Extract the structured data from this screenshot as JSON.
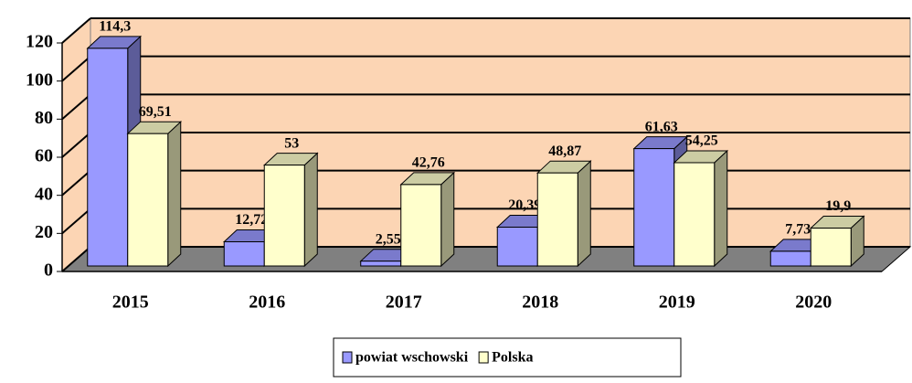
{
  "chart_data": {
    "type": "bar3d",
    "categories": [
      "2015",
      "2016",
      "2017",
      "2018",
      "2019",
      "2020"
    ],
    "series": [
      {
        "name": "powiat wschowski",
        "color": "#9999ff",
        "values": [
          114.3,
          12.72,
          2.55,
          20.39,
          61.63,
          7.73
        ],
        "value_labels": [
          "114,3",
          "12,72",
          "2,55",
          "20,39",
          "61,63",
          "7,73"
        ]
      },
      {
        "name": "Polska",
        "color": "#ffffcc",
        "values": [
          69.51,
          53,
          42.76,
          48.87,
          54.25,
          19.9
        ],
        "value_labels": [
          "69,51",
          "53",
          "42,76",
          "48,87",
          "54,25",
          "19,9"
        ]
      }
    ],
    "ylim": [
      0,
      120
    ],
    "yticks": [
      0,
      20,
      40,
      60,
      80,
      100,
      120
    ],
    "grid": true,
    "legend": "bottom"
  }
}
